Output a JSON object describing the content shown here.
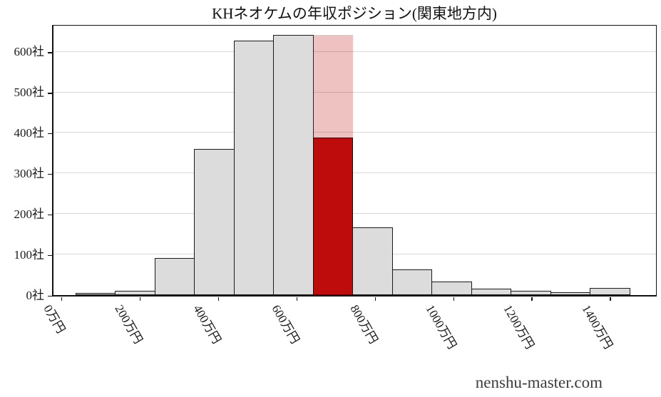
{
  "page": {
    "watermark": "nenshu-master.com"
  },
  "colors": {
    "bar_fill": "#dcdcdc",
    "bar_edge": "#1a1a1a",
    "highlight_red": "#be0c0d",
    "highlight_pink": "rgba(190,12,13,0.25)",
    "gridline": "#d9d9d9",
    "axis": "#111111"
  },
  "chart_data": {
    "type": "bar",
    "subtype": "histogram",
    "title": "KHネオケムの年収ポジション(関東地方内)",
    "x_unit": "万円",
    "y_unit": "社",
    "x_tick_labels": [
      "0万円",
      "200万円",
      "400万円",
      "600万円",
      "800万円",
      "1000万円",
      "1200万円",
      "1400万円"
    ],
    "x_tick_values": [
      0,
      200,
      400,
      600,
      800,
      1000,
      1200,
      1400
    ],
    "y_tick_labels": [
      "0社",
      "100社",
      "200社",
      "300社",
      "400社",
      "500社",
      "600社"
    ],
    "y_tick_values": [
      0,
      100,
      200,
      300,
      400,
      500,
      600
    ],
    "ylim": [
      0,
      665
    ],
    "grid": "horizontal",
    "legend": "none",
    "bin_width_manen": 100,
    "bin_edges_approx_manen": [
      40,
      140,
      240,
      340,
      440,
      540,
      640,
      740,
      840,
      940,
      1040,
      1140,
      1240,
      1340,
      1440
    ],
    "values": [
      3,
      8,
      90,
      358,
      625,
      639,
      639,
      166,
      62,
      31,
      14,
      8,
      6,
      15
    ],
    "highlight": {
      "bin_index": 6,
      "total_value": 639,
      "position_value": 388
    }
  }
}
